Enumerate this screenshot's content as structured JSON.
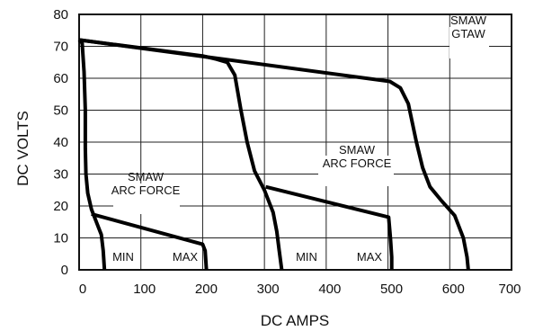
{
  "chart_data": {
    "type": "line",
    "title": "",
    "xlabel": "DC AMPS",
    "ylabel": "DC VOLTS",
    "xlim": [
      0,
      700
    ],
    "ylim": [
      0,
      80
    ],
    "x_ticks": [
      0,
      100,
      200,
      300,
      400,
      500,
      600,
      700
    ],
    "y_ticks": [
      0,
      10,
      20,
      30,
      40,
      50,
      60,
      70,
      80
    ],
    "grid": true,
    "series": [
      {
        "points": [
          [
            0,
            72
          ],
          [
            5,
            71
          ],
          [
            8,
            62
          ],
          [
            10,
            50
          ],
          [
            10,
            38
          ],
          [
            11,
            30
          ],
          [
            14,
            24
          ],
          [
            20,
            19
          ],
          [
            28,
            15
          ],
          [
            36,
            11
          ],
          [
            39,
            6
          ],
          [
            41,
            0
          ]
        ]
      },
      {
        "points": [
          [
            0,
            72
          ],
          [
            200,
            67
          ],
          [
            222,
            66
          ],
          [
            240,
            65
          ],
          [
            252,
            61
          ],
          [
            262,
            50
          ],
          [
            272,
            40
          ],
          [
            284,
            31
          ],
          [
            300,
            25
          ],
          [
            314,
            18
          ],
          [
            320,
            12
          ],
          [
            324,
            6
          ],
          [
            328,
            0
          ]
        ]
      },
      {
        "points": [
          [
            0,
            72
          ],
          [
            503,
            59
          ],
          [
            520,
            57
          ],
          [
            533,
            52
          ],
          [
            546,
            40
          ],
          [
            556,
            32
          ],
          [
            568,
            26
          ],
          [
            585,
            22
          ],
          [
            608,
            17
          ],
          [
            622,
            10
          ],
          [
            628,
            4
          ],
          [
            630,
            0
          ]
        ]
      },
      {
        "points": [
          [
            20,
            17.5
          ],
          [
            200,
            8
          ],
          [
            204,
            6
          ],
          [
            206,
            0
          ]
        ]
      },
      {
        "points": [
          [
            302,
            26
          ],
          [
            501,
            16.5
          ],
          [
            504,
            10
          ],
          [
            506,
            4
          ],
          [
            506,
            0
          ]
        ]
      }
    ],
    "annotations": [
      {
        "id": "min_left",
        "lines": [
          "MIN"
        ]
      },
      {
        "id": "max_left",
        "lines": [
          "MAX"
        ]
      },
      {
        "id": "min_right",
        "lines": [
          "MIN"
        ]
      },
      {
        "id": "max_right",
        "lines": [
          "MAX"
        ]
      },
      {
        "id": "smaw_arc_left",
        "lines": [
          "SMAW",
          "ARC FORCE"
        ]
      },
      {
        "id": "smaw_arc_right",
        "lines": [
          "SMAW",
          "ARC FORCE"
        ]
      },
      {
        "id": "smaw_gtaw",
        "lines": [
          "SMAW",
          "GTAW"
        ]
      }
    ]
  }
}
